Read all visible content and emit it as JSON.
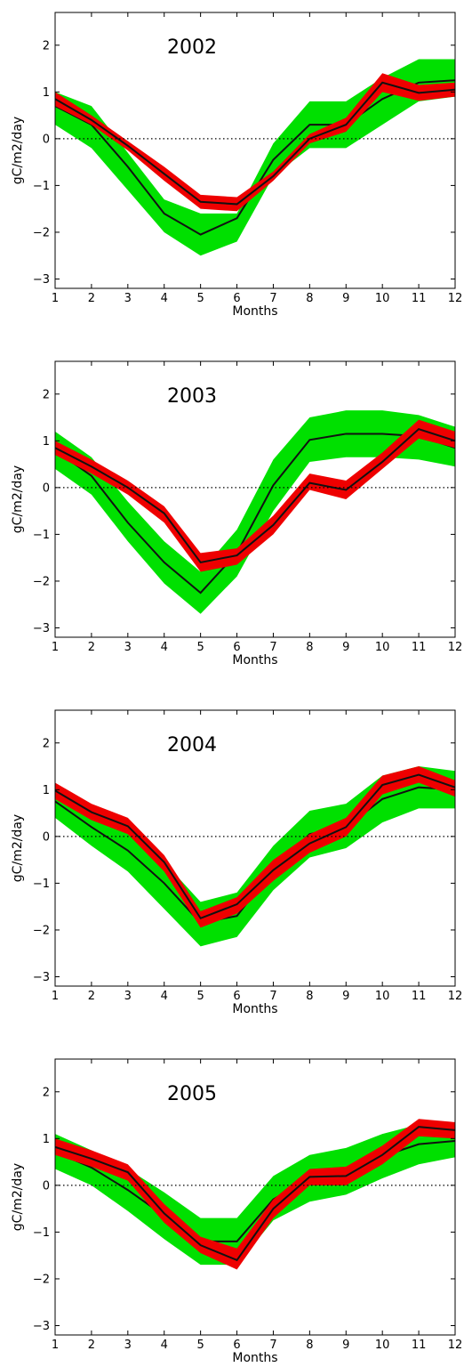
{
  "chart_data": [
    {
      "type": "line",
      "title": "2002",
      "xlabel": "Months",
      "ylabel": "gC/m2/day",
      "xlim": [
        1,
        12
      ],
      "ylim": [
        -3.2,
        2.7
      ],
      "xticks": [
        1,
        2,
        3,
        4,
        5,
        6,
        7,
        8,
        9,
        10,
        11,
        12
      ],
      "yticks": [
        -3,
        -2,
        -1,
        0,
        1,
        2
      ],
      "reference_line": 0,
      "series": [
        {
          "color": "#00e000",
          "kind": "band",
          "upper": [
            1.0,
            0.7,
            -0.3,
            -1.3,
            -1.6,
            -1.6,
            -0.1,
            0.8,
            0.8,
            1.3,
            1.7,
            1.7
          ],
          "lower": [
            0.3,
            -0.2,
            -1.1,
            -2.0,
            -2.5,
            -2.2,
            -0.8,
            -0.2,
            -0.2,
            0.3,
            0.8,
            0.9
          ]
        },
        {
          "color": "#111111",
          "kind": "line",
          "values": [
            0.7,
            0.3,
            -0.6,
            -1.6,
            -2.05,
            -1.7,
            -0.45,
            0.3,
            0.3,
            0.85,
            1.2,
            1.25
          ]
        },
        {
          "color": "#ee0000",
          "kind": "band",
          "upper": [
            1.0,
            0.5,
            -0.05,
            -0.6,
            -1.2,
            -1.25,
            -0.7,
            0.1,
            0.45,
            1.4,
            1.15,
            1.2
          ]
        },
        {
          "color": "#111111",
          "kind": "line",
          "values": [
            0.85,
            0.4,
            -0.15,
            -0.75,
            -1.35,
            -1.4,
            -0.8,
            0.0,
            0.3,
            1.2,
            0.98,
            1.05
          ]
        }
      ]
    },
    {
      "type": "line",
      "title": "2003",
      "xlabel": "Months",
      "ylabel": "gC/m2/day",
      "xlim": [
        1,
        12
      ],
      "ylim": [
        -3.2,
        2.7
      ],
      "xticks": [
        1,
        2,
        3,
        4,
        5,
        6,
        7,
        8,
        9,
        10,
        11,
        12
      ],
      "yticks": [
        -3,
        -2,
        -1,
        0,
        1,
        2
      ],
      "reference_line": 0,
      "series": [
        {
          "color": "#00e000",
          "kind": "band",
          "upper": [
            1.2,
            0.65,
            -0.3,
            -1.15,
            -1.8,
            -0.9,
            0.6,
            1.5,
            1.65,
            1.65,
            1.55,
            1.3
          ],
          "lower": [
            0.4,
            -0.15,
            -1.15,
            -2.05,
            -2.7,
            -1.9,
            -0.5,
            0.55,
            0.65,
            0.65,
            0.6,
            0.45
          ]
        },
        {
          "color": "#111111",
          "kind": "line",
          "values": [
            0.8,
            0.25,
            -0.75,
            -1.6,
            -2.25,
            -1.4,
            0.05,
            1.02,
            1.15,
            1.15,
            1.1,
            0.85
          ]
        },
        {
          "color": "#ee0000",
          "kind": "band",
          "upper": [
            1.0,
            0.6,
            0.15,
            -0.4,
            -1.4,
            -1.3,
            -0.6,
            0.3,
            0.15,
            0.75,
            1.45,
            1.2
          ],
          "lower": [
            0.7,
            0.3,
            -0.15,
            -0.75,
            -1.8,
            -1.65,
            -1.0,
            -0.05,
            -0.25,
            0.4,
            1.05,
            0.85
          ]
        },
        {
          "color": "#111111",
          "kind": "line",
          "values": [
            0.85,
            0.45,
            0.0,
            -0.55,
            -1.6,
            -1.45,
            -0.8,
            0.1,
            -0.05,
            0.55,
            1.25,
            1.0
          ]
        }
      ]
    },
    {
      "type": "line",
      "title": "2004",
      "xlabel": "Months",
      "ylabel": "gC/m2/day",
      "xlim": [
        1,
        12
      ],
      "ylim": [
        -3.2,
        2.7
      ],
      "xticks": [
        1,
        2,
        3,
        4,
        5,
        6,
        7,
        8,
        9,
        10,
        11,
        12
      ],
      "yticks": [
        -3,
        -2,
        -1,
        0,
        1,
        2
      ],
      "reference_line": 0,
      "series": [
        {
          "color": "#00e000",
          "kind": "band",
          "upper": [
            1.1,
            0.6,
            0.2,
            -0.55,
            -1.4,
            -1.2,
            -0.2,
            0.55,
            0.7,
            1.3,
            1.5,
            1.4
          ],
          "lower": [
            0.4,
            -0.2,
            -0.75,
            -1.55,
            -2.35,
            -2.15,
            -1.15,
            -0.45,
            -0.25,
            0.3,
            0.6,
            0.6
          ]
        },
        {
          "color": "#111111",
          "kind": "line",
          "values": [
            0.75,
            0.2,
            -0.3,
            -1.0,
            -1.85,
            -1.7,
            -0.7,
            0.05,
            0.2,
            0.8,
            1.05,
            1.0
          ]
        },
        {
          "color": "#ee0000",
          "kind": "band",
          "upper": [
            1.15,
            0.7,
            0.4,
            -0.4,
            -1.6,
            -1.3,
            -0.5,
            0.05,
            0.4,
            1.3,
            1.5,
            1.2
          ],
          "lower": [
            0.8,
            0.35,
            0.05,
            -0.75,
            -1.95,
            -1.65,
            -0.95,
            -0.35,
            0.0,
            0.9,
            1.15,
            0.85
          ]
        },
        {
          "color": "#111111",
          "kind": "line",
          "values": [
            0.98,
            0.52,
            0.22,
            -0.55,
            -1.75,
            -1.45,
            -0.72,
            -0.15,
            0.2,
            1.1,
            1.32,
            1.05
          ]
        }
      ]
    },
    {
      "type": "line",
      "title": "2005",
      "xlabel": "Months",
      "ylabel": "gC/m2/day",
      "xlim": [
        1,
        12
      ],
      "ylim": [
        -3.2,
        2.7
      ],
      "xticks": [
        1,
        2,
        3,
        4,
        5,
        6,
        7,
        8,
        9,
        10,
        11,
        12
      ],
      "yticks": [
        -3,
        -2,
        -1,
        0,
        1,
        2
      ],
      "reference_line": 0,
      "series": [
        {
          "color": "#00e000",
          "kind": "band",
          "upper": [
            1.1,
            0.75,
            0.35,
            -0.15,
            -0.7,
            -0.7,
            0.2,
            0.65,
            0.8,
            1.1,
            1.3,
            1.3
          ],
          "lower": [
            0.35,
            0.0,
            -0.55,
            -1.15,
            -1.7,
            -1.7,
            -0.75,
            -0.35,
            -0.2,
            0.15,
            0.45,
            0.6
          ]
        },
        {
          "color": "#111111",
          "kind": "line",
          "values": [
            0.72,
            0.38,
            -0.1,
            -0.65,
            -1.2,
            -1.2,
            -0.3,
            0.15,
            0.3,
            0.62,
            0.88,
            0.95
          ]
        },
        {
          "color": "#ee0000",
          "kind": "band",
          "upper": [
            1.0,
            0.75,
            0.45,
            -0.4,
            -1.1,
            -1.35,
            -0.3,
            0.35,
            0.4,
            0.85,
            1.42,
            1.35
          ],
          "lower": [
            0.65,
            0.4,
            0.1,
            -0.8,
            -1.45,
            -1.8,
            -0.7,
            0.0,
            0.0,
            0.45,
            1.05,
            1.0
          ]
        },
        {
          "color": "#111111",
          "kind": "line",
          "values": [
            0.82,
            0.57,
            0.28,
            -0.6,
            -1.28,
            -1.6,
            -0.5,
            0.18,
            0.2,
            0.65,
            1.25,
            1.18
          ]
        }
      ]
    }
  ]
}
